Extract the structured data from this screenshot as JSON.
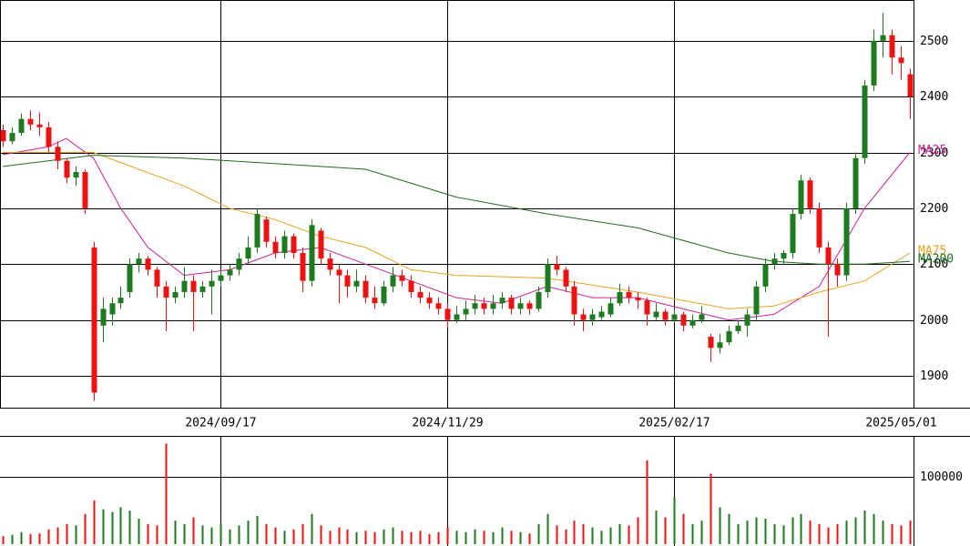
{
  "chart_data": {
    "type": "candlestick",
    "up_color": "#1e7a1e",
    "down_color": "#ee1111",
    "xlim": [
      -0.3,
      100.4
    ],
    "xticks": [
      {
        "value": 24,
        "label": "2024/09/17"
      },
      {
        "value": 49,
        "label": "2024/11/29"
      },
      {
        "value": 74,
        "label": "2025/02/17"
      },
      {
        "value": 99,
        "label": "2025/05/01"
      }
    ],
    "ylim": [
      1843,
      2573
    ],
    "yticks": [
      1900,
      2000,
      2100,
      2200,
      2300,
      2400,
      2500
    ],
    "candles": [
      [
        2340,
        2350,
        2310,
        2320
      ],
      [
        2320,
        2345,
        2315,
        2335
      ],
      [
        2335,
        2370,
        2330,
        2360
      ],
      [
        2360,
        2375,
        2340,
        2350
      ],
      [
        2350,
        2372,
        2330,
        2345
      ],
      [
        2345,
        2355,
        2300,
        2310
      ],
      [
        2310,
        2320,
        2270,
        2285
      ],
      [
        2285,
        2290,
        2245,
        2255
      ],
      [
        2255,
        2275,
        2240,
        2265
      ],
      [
        2265,
        2270,
        2190,
        2200
      ],
      [
        2130,
        2140,
        1855,
        1870
      ],
      [
        1990,
        2040,
        1960,
        2020
      ],
      [
        2010,
        2040,
        1990,
        2030
      ],
      [
        2030,
        2060,
        2020,
        2040
      ],
      [
        2050,
        2110,
        2040,
        2100
      ],
      [
        2100,
        2120,
        2085,
        2110
      ],
      [
        2110,
        2115,
        2080,
        2090
      ],
      [
        2090,
        2095,
        2040,
        2060
      ],
      [
        2060,
        2070,
        1980,
        2040
      ],
      [
        2040,
        2060,
        2030,
        2050
      ],
      [
        2050,
        2095,
        2040,
        2070
      ],
      [
        2070,
        2080,
        1980,
        2050
      ],
      [
        2050,
        2070,
        2040,
        2060
      ],
      [
        2060,
        2090,
        2010,
        2070
      ],
      [
        2070,
        2090,
        2060,
        2080
      ],
      [
        2080,
        2100,
        2070,
        2090
      ],
      [
        2090,
        2120,
        2080,
        2110
      ],
      [
        2110,
        2150,
        2100,
        2130
      ],
      [
        2130,
        2200,
        2120,
        2190
      ],
      [
        2180,
        2185,
        2130,
        2140
      ],
      [
        2140,
        2150,
        2110,
        2120
      ],
      [
        2120,
        2160,
        2110,
        2150
      ],
      [
        2150,
        2155,
        2110,
        2120
      ],
      [
        2120,
        2130,
        2050,
        2070
      ],
      [
        2070,
        2180,
        2060,
        2170
      ],
      [
        2160,
        2165,
        2100,
        2110
      ],
      [
        2110,
        2120,
        2080,
        2090
      ],
      [
        2090,
        2100,
        2030,
        2080
      ],
      [
        2080,
        2090,
        2040,
        2060
      ],
      [
        2060,
        2090,
        2050,
        2070
      ],
      [
        2070,
        2080,
        2030,
        2040
      ],
      [
        2040,
        2060,
        2020,
        2030
      ],
      [
        2030,
        2070,
        2025,
        2060
      ],
      [
        2060,
        2095,
        2050,
        2080
      ],
      [
        2080,
        2090,
        2060,
        2070
      ],
      [
        2070,
        2080,
        2040,
        2050
      ],
      [
        2050,
        2060,
        2030,
        2040
      ],
      [
        2040,
        2050,
        2020,
        2030
      ],
      [
        2030,
        2040,
        2010,
        2020
      ],
      [
        2020,
        2030,
        1985,
        2000
      ],
      [
        2000,
        2025,
        1995,
        2010
      ],
      [
        2010,
        2035,
        2000,
        2020
      ],
      [
        2020,
        2045,
        2010,
        2030
      ],
      [
        2030,
        2040,
        2010,
        2020
      ],
      [
        2020,
        2045,
        2010,
        2030
      ],
      [
        2030,
        2050,
        2020,
        2040
      ],
      [
        2040,
        2045,
        2010,
        2020
      ],
      [
        2020,
        2040,
        2010,
        2030
      ],
      [
        2030,
        2035,
        2010,
        2020
      ],
      [
        2020,
        2060,
        2015,
        2050
      ],
      [
        2050,
        2110,
        2040,
        2100
      ],
      [
        2100,
        2115,
        2080,
        2090
      ],
      [
        2090,
        2095,
        2050,
        2060
      ],
      [
        2060,
        2070,
        1990,
        2010
      ],
      [
        2010,
        2020,
        1980,
        2000
      ],
      [
        2000,
        2020,
        1990,
        2010
      ],
      [
        2005,
        2025,
        2000,
        2015
      ],
      [
        2010,
        2040,
        2005,
        2030
      ],
      [
        2030,
        2065,
        2025,
        2050
      ],
      [
        2050,
        2060,
        2030,
        2040
      ],
      [
        2040,
        2050,
        2020,
        2035
      ],
      [
        2035,
        2040,
        1990,
        2010
      ],
      [
        2005,
        2030,
        2000,
        2015
      ],
      [
        2015,
        2020,
        1990,
        2000
      ],
      [
        2000,
        2020,
        1995,
        2010
      ],
      [
        2010,
        2015,
        1980,
        1990
      ],
      [
        1990,
        2010,
        1985,
        2000
      ],
      [
        2000,
        2025,
        1995,
        2010
      ],
      [
        1970,
        1975,
        1925,
        1950
      ],
      [
        1950,
        1975,
        1940,
        1960
      ],
      [
        1960,
        1990,
        1955,
        1980
      ],
      [
        1980,
        2000,
        1975,
        1990
      ],
      [
        1990,
        2020,
        1970,
        2010
      ],
      [
        2010,
        2070,
        2000,
        2060
      ],
      [
        2060,
        2110,
        2050,
        2100
      ],
      [
        2100,
        2120,
        2090,
        2110
      ],
      [
        2110,
        2125,
        2100,
        2120
      ],
      [
        2120,
        2200,
        2110,
        2190
      ],
      [
        2190,
        2260,
        2180,
        2250
      ],
      [
        2250,
        2255,
        2190,
        2200
      ],
      [
        2200,
        2210,
        2120,
        2130
      ],
      [
        2130,
        2140,
        1970,
        2100
      ],
      [
        2100,
        2110,
        2060,
        2080
      ],
      [
        2080,
        2210,
        2070,
        2200
      ],
      [
        2200,
        2300,
        2190,
        2290
      ],
      [
        2290,
        2430,
        2280,
        2420
      ],
      [
        2420,
        2520,
        2410,
        2500
      ],
      [
        2500,
        2550,
        2470,
        2510
      ],
      [
        2510,
        2520,
        2440,
        2470
      ],
      [
        2470,
        2490,
        2430,
        2460
      ],
      [
        2440,
        2450,
        2360,
        2400
      ]
    ],
    "ma": [
      {
        "name": "MA25",
        "color": "#d0209a",
        "x": [
          0,
          5,
          7,
          10,
          13,
          16,
          20,
          25,
          30,
          35,
          40,
          45,
          50,
          55,
          60,
          65,
          70,
          75,
          80,
          85,
          90,
          95,
          100
        ],
        "values": [
          2296,
          2310,
          2325,
          2290,
          2200,
          2130,
          2080,
          2090,
          2120,
          2130,
          2100,
          2070,
          2040,
          2030,
          2060,
          2040,
          2040,
          2020,
          2000,
          2010,
          2060,
          2200,
          2300
        ]
      },
      {
        "name": "MA75",
        "color": "#f0a020",
        "x": [
          0,
          10,
          15,
          20,
          25,
          30,
          35,
          40,
          45,
          50,
          60,
          70,
          80,
          85,
          90,
          95,
          100
        ],
        "values": [
          2300,
          2300,
          2270,
          2240,
          2200,
          2180,
          2150,
          2130,
          2090,
          2080,
          2075,
          2050,
          2020,
          2025,
          2050,
          2070,
          2120
        ]
      },
      {
        "name": "MA200",
        "color": "#1a6e1a",
        "x": [
          0,
          10,
          20,
          30,
          40,
          50,
          60,
          70,
          80,
          85,
          90,
          95,
          100
        ],
        "values": [
          2275,
          2295,
          2290,
          2280,
          2270,
          2220,
          2190,
          2165,
          2120,
          2105,
          2100,
          2100,
          2105
        ]
      }
    ],
    "volume": {
      "ylim": [
        0,
        160000
      ],
      "yticks": [
        100000
      ],
      "values": [
        12000,
        14000,
        18000,
        15000,
        16000,
        22000,
        25000,
        30000,
        28000,
        45000,
        65000,
        52000,
        48000,
        55000,
        50000,
        38000,
        30000,
        28000,
        150000,
        35000,
        30000,
        40000,
        28000,
        25000,
        30000,
        22000,
        28000,
        35000,
        42000,
        30000,
        25000,
        20000,
        22000,
        30000,
        45000,
        28000,
        20000,
        25000,
        22000,
        18000,
        20000,
        18000,
        22000,
        25000,
        20000,
        18000,
        20000,
        15000,
        18000,
        25000,
        20000,
        18000,
        22000,
        20000,
        18000,
        25000,
        20000,
        18000,
        16000,
        30000,
        45000,
        28000,
        22000,
        35000,
        30000,
        25000,
        20000,
        25000,
        30000,
        28000,
        40000,
        125000,
        50000,
        40000,
        70000,
        45000,
        30000,
        35000,
        105000,
        55000,
        45000,
        30000,
        35000,
        40000,
        38000,
        30000,
        28000,
        40000,
        45000,
        35000,
        30000,
        25000,
        30000,
        35000,
        40000,
        50000,
        45000,
        35000,
        30000,
        28000,
        35000
      ]
    }
  }
}
